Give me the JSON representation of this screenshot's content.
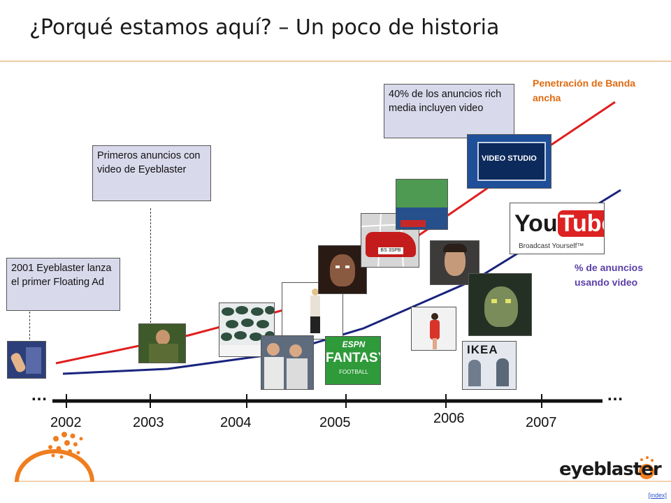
{
  "slide": {
    "title": "¿Porqué estamos aquí? – Un poco de historia",
    "index_link": "[index]"
  },
  "timeline": {
    "years": [
      "2002",
      "2003",
      "2004",
      "2005",
      "2006",
      "2007"
    ],
    "ellipsis_left": "…",
    "ellipsis_right": "…"
  },
  "callouts": {
    "c2001": "2001 Eyeblaster lanza el primer Floating Ad",
    "c2003": "Primeros anuncios con video de Eyeblaster",
    "c2006": "40% de los anuncios rich media incluyen video"
  },
  "legend": {
    "broadband": "Penetración de Banda ancha",
    "video_ads": "% de anuncios usando video",
    "broadband_color": "#e01e1e",
    "video_color": "#1a237e"
  },
  "thumbnails": {
    "youtube_logo": "YouTube",
    "youtube_you": "You",
    "youtube_tube": "Tube",
    "youtube_tagline": "Broadcast Yourself™",
    "video_studio": "VIDEO STUDIO",
    "espn": "ESPN",
    "fantasy": "FANTASY",
    "football": "FOOTBALL",
    "ikea": "IKEA",
    "audi_plate": "BS 3SPB"
  },
  "brand": {
    "logo_text": "eyeblaster",
    "accent": "#f07d1e"
  }
}
